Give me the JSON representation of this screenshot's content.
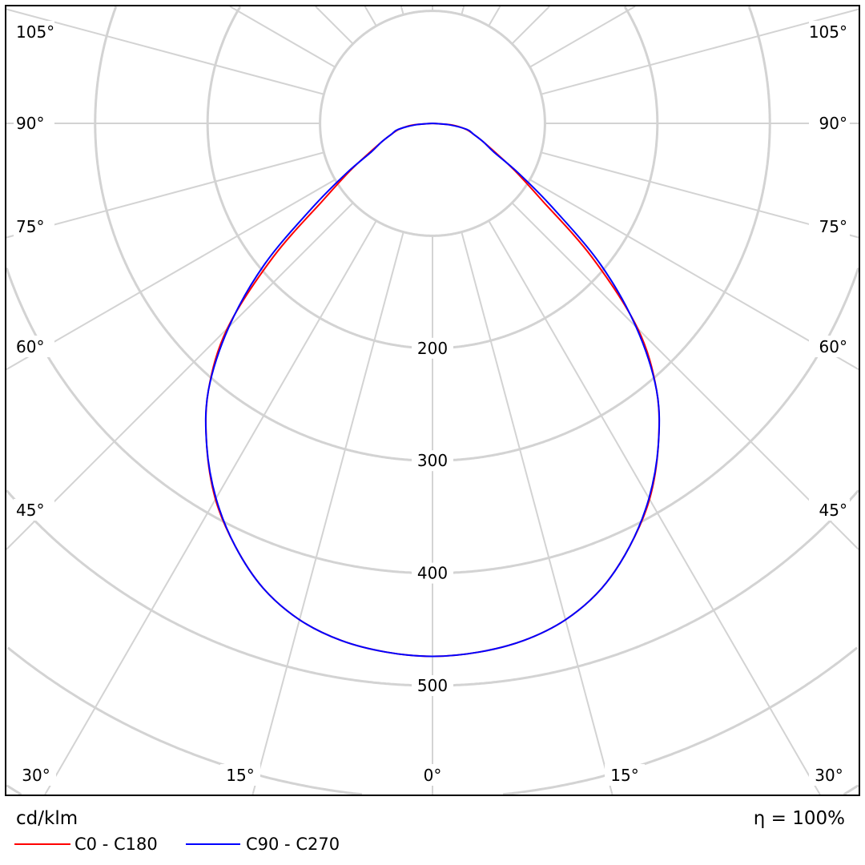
{
  "chart_data": {
    "type": "polar",
    "unit_label": "cd/klm",
    "efficiency_label": "η = 100%",
    "radial_ticks": [
      100,
      200,
      300,
      400,
      500,
      600,
      700
    ],
    "radial_tick_labels": [
      "200",
      "300",
      "400",
      "500"
    ],
    "angle_labels_side": [
      "105°",
      "90°",
      "75°",
      "60°",
      "45°"
    ],
    "angle_labels_bottom": [
      "30°",
      "15°",
      "0°",
      "15°",
      "30°"
    ],
    "grid": true,
    "angles_deg": [
      0,
      5,
      10,
      15,
      20,
      25,
      30,
      35,
      40,
      45,
      50,
      55,
      60,
      65,
      70,
      75,
      80,
      85,
      90
    ],
    "series": [
      {
        "name": "C0 - C180",
        "color": "#ff0000",
        "values": [
          474,
          472,
          467,
          457,
          440,
          415,
          386,
          350,
          310,
          258,
          185,
          118,
          85,
          62,
          48,
          38,
          30,
          18,
          0
        ]
      },
      {
        "name": "C90 - C270",
        "color": "#0000ff",
        "values": [
          474,
          472,
          467,
          457,
          440,
          415,
          385,
          350,
          310,
          256,
          195,
          130,
          88,
          60,
          48,
          38,
          31,
          15,
          0
        ]
      }
    ]
  }
}
